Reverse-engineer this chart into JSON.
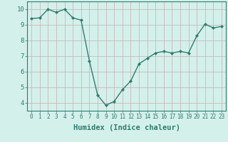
{
  "x": [
    0,
    1,
    2,
    3,
    4,
    5,
    6,
    7,
    8,
    9,
    10,
    11,
    12,
    13,
    14,
    15,
    16,
    17,
    18,
    19,
    20,
    21,
    22,
    23
  ],
  "y": [
    9.4,
    9.45,
    10.0,
    9.8,
    10.0,
    9.45,
    9.3,
    6.7,
    4.5,
    3.85,
    4.1,
    4.85,
    5.4,
    6.5,
    6.85,
    7.2,
    7.3,
    7.2,
    7.3,
    7.2,
    8.3,
    9.05,
    8.8,
    8.9
  ],
  "line_color": "#2e7d6e",
  "marker": "D",
  "marker_size": 2.0,
  "linewidth": 1.0,
  "xlabel": "Humidex (Indice chaleur)",
  "xlim": [
    -0.5,
    23.5
  ],
  "ylim": [
    3.5,
    10.5
  ],
  "yticks": [
    4,
    5,
    6,
    7,
    8,
    9,
    10
  ],
  "xtick_labels": [
    "0",
    "1",
    "2",
    "3",
    "4",
    "5",
    "6",
    "7",
    "8",
    "9",
    "10",
    "11",
    "12",
    "13",
    "14",
    "15",
    "16",
    "17",
    "18",
    "19",
    "20",
    "21",
    "22",
    "23"
  ],
  "bg_color": "#d4f0eb",
  "grid_color": "#c8b8b8",
  "xlabel_color": "#2e7d6e",
  "tick_color": "#2e7d6e",
  "xlabel_fontsize": 7.5,
  "ytick_fontsize": 6.5,
  "xtick_fontsize": 5.5
}
